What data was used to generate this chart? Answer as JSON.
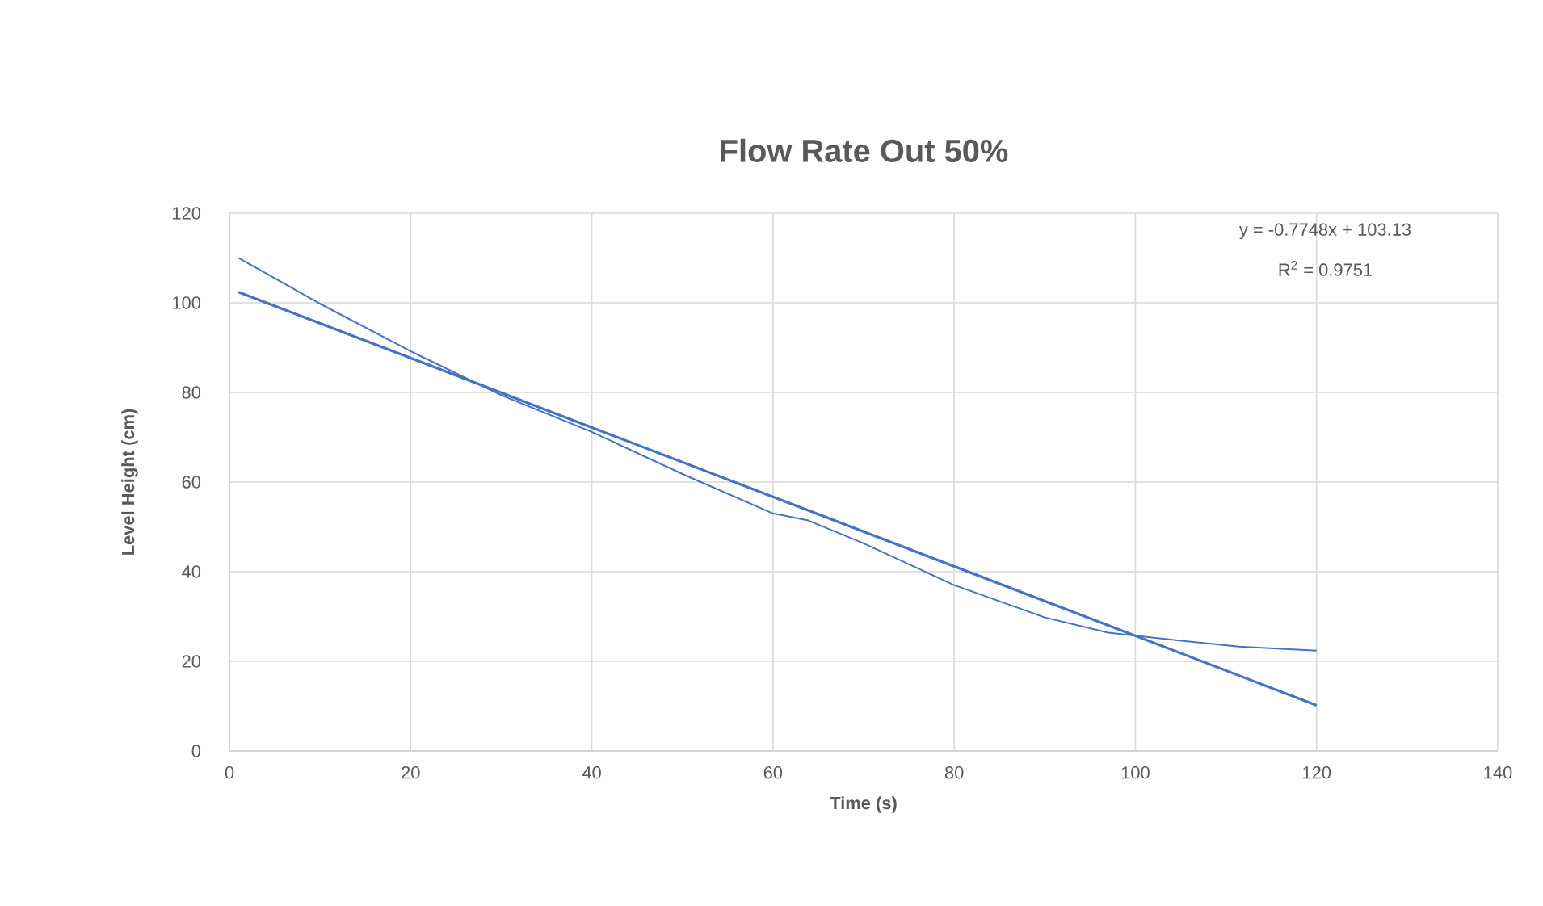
{
  "chart_data": {
    "type": "line",
    "title": "Flow Rate Out 50%",
    "xlabel": "Time (s)",
    "ylabel": "Level Height (cm)",
    "xlim": [
      0,
      140
    ],
    "xticks": [
      0,
      20,
      40,
      60,
      80,
      100,
      120,
      140
    ],
    "ylim": [
      0,
      120
    ],
    "yticks": [
      0,
      20,
      40,
      60,
      80,
      100,
      120
    ],
    "grid": true,
    "marker": "none",
    "line_style": "solid",
    "series": [
      {
        "color": "#4472c4",
        "x": [
          1,
          9.8,
          20,
          30,
          40,
          50,
          60,
          63.8,
          69.8,
          80,
          90,
          97,
          100,
          105.5,
          111.4,
          120
        ],
        "values": [
          110,
          100,
          89.2,
          79.4,
          71.2,
          61.8,
          53,
          51.5,
          46.5,
          37,
          29.8,
          26.4,
          25.7,
          24.5,
          23.3,
          22.4
        ]
      },
      {
        "type": "line",
        "color": "#4472c4",
        "x": [
          1,
          120
        ],
        "values": [
          102.4,
          10.2
        ]
      }
    ],
    "annotations": [
      "y = -0.7748x + 103.13",
      "R$^{2}$ = 0.9751"
    ]
  }
}
